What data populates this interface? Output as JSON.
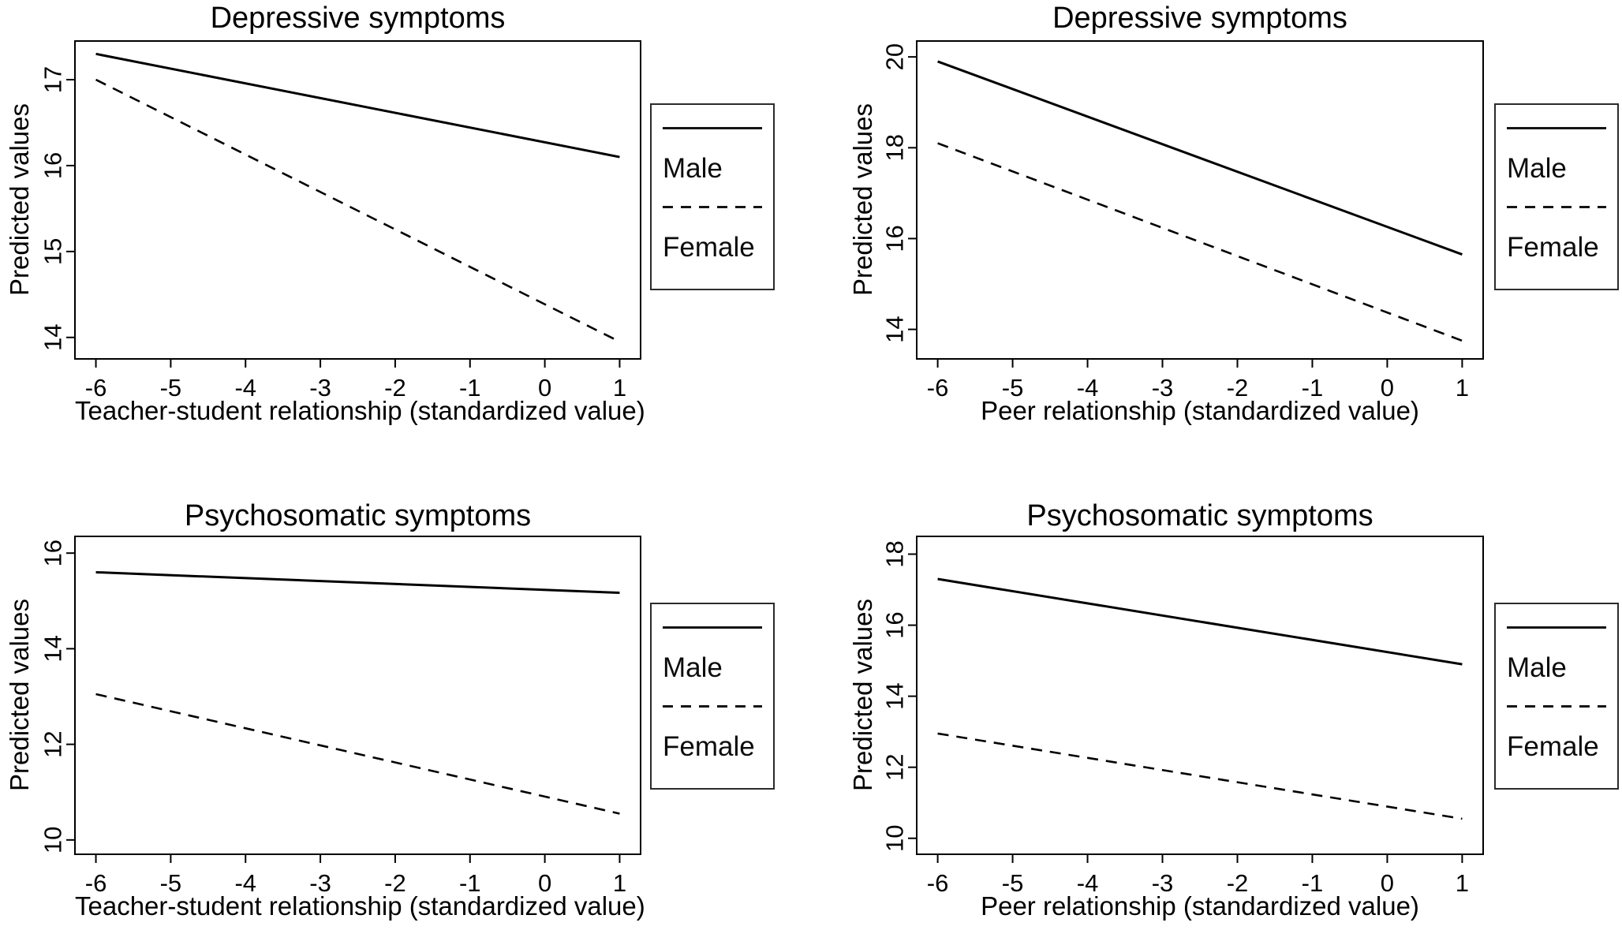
{
  "figure": {
    "background_color": "#ffffff",
    "line_color": "#000000",
    "legend_labels": [
      "Male",
      "Female"
    ]
  },
  "chart_data": [
    {
      "type": "line",
      "title": "Depressive symptoms",
      "xlabel": "Teacher-student relationship (standardized value)",
      "ylabel": "Predicted values",
      "x_ticks": [
        -6,
        -5,
        -4,
        -3,
        -2,
        -1,
        0,
        1
      ],
      "y_ticks": [
        14,
        15,
        16,
        17
      ],
      "xlim": [
        -6.28,
        1.28
      ],
      "ylim": [
        13.75,
        17.45
      ],
      "grid": false,
      "legend_position": "right",
      "series": [
        {
          "name": "Male",
          "style": "solid",
          "x": [
            -6,
            1
          ],
          "y": [
            17.3,
            16.1
          ]
        },
        {
          "name": "Female",
          "style": "dashed",
          "x": [
            -6,
            1
          ],
          "y": [
            17.0,
            13.95
          ]
        }
      ]
    },
    {
      "type": "line",
      "title": "Depressive symptoms",
      "xlabel": "Peer relationship (standardized value)",
      "ylabel": "Predicted values",
      "x_ticks": [
        -6,
        -5,
        -4,
        -3,
        -2,
        -1,
        0,
        1
      ],
      "y_ticks": [
        14,
        16,
        18,
        20
      ],
      "xlim": [
        -6.28,
        1.28
      ],
      "ylim": [
        13.35,
        20.35
      ],
      "grid": false,
      "legend_position": "right",
      "series": [
        {
          "name": "Male",
          "style": "solid",
          "x": [
            -6,
            1
          ],
          "y": [
            19.9,
            15.65
          ]
        },
        {
          "name": "Female",
          "style": "dashed",
          "x": [
            -6,
            1
          ],
          "y": [
            18.1,
            13.75
          ]
        }
      ]
    },
    {
      "type": "line",
      "title": "Psychosomatic symptoms",
      "xlabel": "Teacher-student relationship (standardized value)",
      "ylabel": "Predicted values",
      "x_ticks": [
        -6,
        -5,
        -4,
        -3,
        -2,
        -1,
        0,
        1
      ],
      "y_ticks": [
        10,
        12,
        14,
        16
      ],
      "xlim": [
        -6.28,
        1.28
      ],
      "ylim": [
        9.7,
        16.35
      ],
      "grid": false,
      "legend_position": "right",
      "series": [
        {
          "name": "Male",
          "style": "solid",
          "x": [
            -6,
            1
          ],
          "y": [
            15.6,
            15.17
          ]
        },
        {
          "name": "Female",
          "style": "dashed",
          "x": [
            -6,
            1
          ],
          "y": [
            13.05,
            10.55
          ]
        }
      ]
    },
    {
      "type": "line",
      "title": "Psychosomatic symptoms",
      "xlabel": "Peer relationship (standardized value)",
      "ylabel": "Predicted values",
      "x_ticks": [
        -6,
        -5,
        -4,
        -3,
        -2,
        -1,
        0,
        1
      ],
      "y_ticks": [
        10,
        12,
        14,
        16,
        18
      ],
      "xlim": [
        -6.28,
        1.28
      ],
      "ylim": [
        9.55,
        18.5
      ],
      "grid": false,
      "legend_position": "right",
      "series": [
        {
          "name": "Male",
          "style": "solid",
          "x": [
            -6,
            1
          ],
          "y": [
            17.3,
            14.9
          ]
        },
        {
          "name": "Female",
          "style": "dashed",
          "x": [
            -6,
            1
          ],
          "y": [
            12.95,
            10.55
          ]
        }
      ]
    }
  ]
}
